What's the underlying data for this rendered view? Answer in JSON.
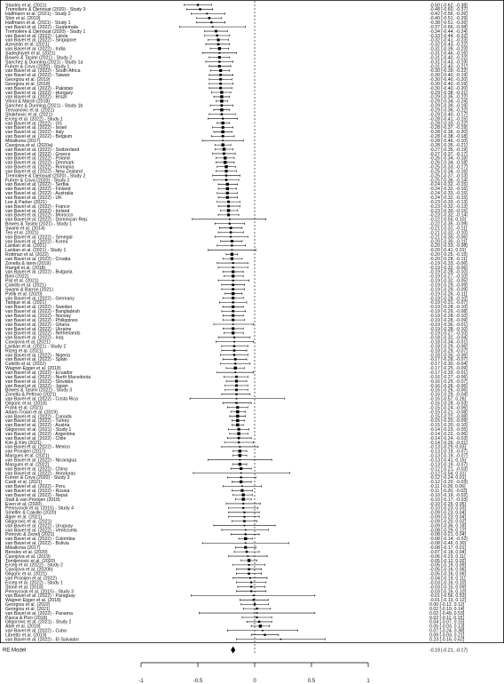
{
  "chart_data": {
    "type": "forest",
    "title": "",
    "xlabel": "",
    "ylabel": "",
    "xlim": [
      -1,
      1
    ],
    "x_ticks": [
      -1,
      -0.5,
      0,
      0.5,
      1
    ],
    "x_tick_labels": [
      "-1",
      "-0.5",
      "0",
      "0.5",
      "1"
    ],
    "grid": false,
    "reference_line": 0,
    "studies": [
      [
        "Stanley et al. (2021)",
        -0.5,
        -0.62,
        -0.38
      ],
      [
        "Tremoliere & Djeriouat (2020) - Study 3",
        -0.48,
        -0.6,
        -0.37
      ],
      [
        "Halfmann et al. (2021) - Study 2",
        -0.42,
        -0.56,
        -0.26
      ],
      [
        "Shin et al. (2019)",
        -0.4,
        -0.51,
        -0.29
      ],
      [
        "Halfmann et al. (2021) - Study 1",
        -0.38,
        -0.51,
        -0.26
      ],
      [
        "van Bavel et al. (2022) - Guatemala",
        -0.37,
        -0.66,
        -0.08
      ],
      [
        "Tremoliere & Djeriouat (2020) - Study 1",
        -0.34,
        -0.44,
        -0.24
      ],
      [
        "van Bavel et al. (2022) - Latvia",
        -0.33,
        -0.44,
        -0.22
      ],
      [
        "van Bavel et al. (2022) - Singapore",
        -0.32,
        -0.41,
        -0.23
      ],
      [
        "Azevedo et al. (2021)",
        -0.32,
        -0.43,
        -0.22
      ],
      [
        "van Bavel et al. (2022) - India",
        -0.31,
        -0.39,
        -0.23
      ],
      [
        "Sadeghiyeh et al. (2021)",
        -0.31,
        -0.46,
        -0.16
      ],
      [
        "Bowes & Tasimi (2021) - Study 2",
        -0.31,
        -0.4,
        -0.22
      ],
      [
        "Sanchez & Dunning (2021) - Study 1a",
        -0.31,
        -0.43,
        -0.19
      ],
      [
        "Fuhrer & Cova (2020) - Study 1",
        -0.31,
        -0.4,
        -0.21
      ],
      [
        "van Bavel et al. (2022) - South Africa",
        -0.3,
        -0.39,
        -0.22
      ],
      [
        "van Bavel et al. (2022) - Taiwan",
        -0.3,
        -0.4,
        -0.19
      ],
      [
        "Georgiou et al. (2019)",
        -0.3,
        -0.4,
        -0.2
      ],
      [
        "Georgiou et al. (2018)",
        -0.3,
        -0.4,
        -0.19
      ],
      [
        "van Bavel et al. (2022) - Pakistan",
        -0.3,
        -0.4,
        -0.2
      ],
      [
        "van Bavel et al. (2022) - Hungary",
        -0.29,
        -0.38,
        -0.21
      ],
      [
        "van Bavel et al. (2022) - Brazil",
        -0.29,
        -0.36,
        -0.22
      ],
      [
        "Vitriol & Marsh (2018)",
        -0.29,
        -0.34,
        -0.24
      ],
      [
        "Sanchez & Dunning (2021) - Study 1b",
        -0.29,
        -0.39,
        -0.19
      ],
      [
        "Teovanovic et al. (2021)",
        -0.29,
        -0.36,
        -0.22
      ],
      [
        "Shakhovic et al. (2021)",
        -0.29,
        -0.4,
        -0.17
      ],
      [
        "Erceg et al. (2022) - Study 1",
        -0.28,
        -0.41,
        -0.15
      ],
      [
        "van Bavel et al. (2022) - US",
        -0.28,
        -0.33,
        -0.22
      ],
      [
        "van Bavel et al. (2022) - Israel",
        -0.28,
        -0.37,
        -0.19
      ],
      [
        "van Bavel et al. (2022) - Italy",
        -0.28,
        -0.36,
        -0.2
      ],
      [
        "van Bavel et al. (2022) - Belgium",
        -0.28,
        -0.38,
        -0.18
      ],
      [
        "Mikalkova (2017)",
        -0.28,
        -0.46,
        -0.1
      ],
      [
        "Cavojova et al. (2020a)",
        -0.28,
        -0.35,
        -0.21
      ],
      [
        "van Bavel et al. (2022) - Switzerland",
        -0.27,
        -0.35,
        -0.19
      ],
      [
        "van Bavel et al. (2022) - Greece",
        -0.27,
        -0.37,
        -0.17
      ],
      [
        "van Bavel et al. (2022) - Poland",
        -0.26,
        -0.34,
        -0.18
      ],
      [
        "van Bavel et al. (2022) - Denmark",
        -0.26,
        -0.34,
        -0.18
      ],
      [
        "van Bavel et al. (2022) - Romania",
        -0.25,
        -0.33,
        -0.17
      ],
      [
        "van Bavel et al. (2022) - New Zealand",
        -0.25,
        -0.34,
        -0.16
      ],
      [
        "Tremoliere & Djeriouat (2020) - Study 2",
        -0.25,
        -0.37,
        -0.13
      ],
      [
        "Fuhrer & Cova (2020) - Study 2",
        -0.25,
        -0.36,
        -0.14
      ],
      [
        "van Bavel et al. (2022) - Serbia",
        -0.24,
        -0.32,
        -0.15
      ],
      [
        "van Bavel et al. (2022) - Finland",
        -0.24,
        -0.32,
        -0.16
      ],
      [
        "van Bavel et al. (2022) - Australia",
        -0.24,
        -0.33,
        -0.15
      ],
      [
        "van Bavel et al. (2022) - UK",
        -0.24,
        -0.32,
        -0.15
      ],
      [
        "Lee & Parker (2021)",
        -0.23,
        -0.33,
        -0.13
      ],
      [
        "van Bavel et al. (2022) - France",
        -0.23,
        -0.32,
        -0.13
      ],
      [
        "van Bavel et al. (2022) - Ireland",
        -0.23,
        -0.3,
        -0.15
      ],
      [
        "van Bavel et al. (2022) - Morocco",
        -0.23,
        -0.32,
        -0.14
      ],
      [
        "van Bavel et al. (2022) - Dominican Rep.",
        -0.22,
        -0.55,
        0.1
      ],
      [
        "Bowes & Tasimi (2021) - Study 1",
        -0.22,
        -0.35,
        -0.09
      ],
      [
        "Swami et al. (2014)",
        -0.21,
        -0.31,
        -0.11
      ],
      [
        "Teo et al. (2021)",
        -0.21,
        -0.32,
        -0.1
      ],
      [
        "van Bavel et al. (2022) - Senegal",
        -0.21,
        -0.35,
        -0.06
      ],
      [
        "van Bavel et al. (2022) - Korea",
        -0.2,
        -0.3,
        -0.11
      ],
      [
        "Lantian et al. (2021)",
        -0.2,
        -0.33,
        -0.08
      ],
      [
        "Lantian et al. (2021) - Study 1",
        -0.2,
        -0.41,
        0.01
      ],
      [
        "Rottman et al. (2022)",
        -0.2,
        -0.25,
        -0.15
      ],
      [
        "van Bavel et al. (2022) - Croatia",
        -0.2,
        -0.28,
        -0.11
      ],
      [
        "Zonella & Ianni (2019)",
        -0.19,
        -0.33,
        -0.06
      ],
      [
        "Rampil et al. (2018)",
        -0.19,
        -0.32,
        -0.06
      ],
      [
        "van Bavel et al. (2022) - Bulgaria",
        -0.19,
        -0.28,
        -0.1
      ],
      [
        "Binil (2022)",
        -0.19,
        -0.27,
        -0.1
      ],
      [
        "Pisl et al. (2021)",
        -0.19,
        -0.32,
        -0.05
      ],
      [
        "Calvillo et al. (2021)",
        -0.19,
        -0.29,
        -0.09
      ],
      [
        "Swami & Barron (2021)",
        -0.19,
        -0.29,
        -0.09
      ],
      [
        "Pytlik et al. (2020)",
        -0.19,
        -0.26,
        -0.11
      ],
      [
        "van Bavel et al. (2022) - Germany",
        -0.19,
        -0.28,
        -0.1
      ],
      [
        "Tarique et al. (2021)",
        -0.19,
        -0.31,
        -0.07
      ],
      [
        "van Bavel et al. (2022) - Sweden",
        -0.19,
        -0.28,
        -0.1
      ],
      [
        "van Bavel et al. (2022) - Bangladesh",
        -0.19,
        -0.29,
        -0.08
      ],
      [
        "van Bavel et al. (2022) - Norway",
        -0.19,
        -0.28,
        -0.1
      ],
      [
        "van Bavel et al. (2022) - Philippines",
        -0.19,
        -0.28,
        -0.09
      ],
      [
        "van Bavel et al. (2022) - Ghana",
        -0.19,
        -0.36,
        -0.01
      ],
      [
        "van Bavel et al. (2022) - Ukraine",
        -0.19,
        -0.28,
        -0.1
      ],
      [
        "van Bavel et al. (2022) - Netherlands",
        -0.19,
        -0.27,
        -0.1
      ],
      [
        "van Bavel et al. (2022) - Iraq",
        -0.18,
        -0.32,
        -0.04
      ],
      [
        "Cavojova et al. (2021)",
        -0.18,
        -0.34,
        -0.01
      ],
      [
        "Lantian et al. (2021) - Study 2",
        -0.18,
        -0.29,
        -0.06
      ],
      [
        "Rizeq et al. (2021)",
        -0.18,
        -0.29,
        -0.07
      ],
      [
        "van Bavel et al. (2022) - Nigeria",
        -0.18,
        -0.3,
        -0.06
      ],
      [
        "van Bavel et al. (2022) - Spain",
        -0.17,
        -0.28,
        -0.07
      ],
      [
        "Calvillo et al. (2022)",
        -0.17,
        -0.3,
        -0.04
      ],
      [
        "Wagner-Egger et al. (2018)",
        -0.17,
        -0.25,
        -0.09
      ],
      [
        "van Bavel et al. (2022) - Ecuador",
        -0.17,
        -0.33,
        -0.01
      ],
      [
        "van Bavel et al. (2022) - North Macedonia",
        -0.16,
        -0.27,
        -0.06
      ],
      [
        "van Bavel et al. (2022) - Slovakia",
        -0.16,
        -0.25,
        -0.07
      ],
      [
        "van Bavel et al. (2022) - Japan",
        -0.16,
        -0.26,
        -0.06
      ],
      [
        "Bowes & Tasimi (2021) - Study 3",
        -0.16,
        -0.26,
        -0.06
      ],
      [
        "Zonella & Pettovo (2021)",
        -0.16,
        -0.29,
        -0.04
      ],
      [
        "van Bavel et al. (2022) - Costa Rica",
        -0.16,
        -0.57,
        0.26
      ],
      [
        "Gligoric et al. (2018)",
        -0.16,
        -0.28,
        -0.03
      ],
      [
        "Frank et al. (2021)",
        -0.15,
        -0.24,
        -0.06
      ],
      [
        "Adam-Troian et al. (2019)",
        -0.15,
        -0.21,
        -0.08
      ],
      [
        "van Bavel et al. (2022) - Canada",
        -0.15,
        -0.22,
        -0.08
      ],
      [
        "van Bavel et al. (2022) - Turkey",
        -0.15,
        -0.2,
        -0.09
      ],
      [
        "van Bavel et al. (2022) - Austria",
        -0.15,
        -0.2,
        -0.1
      ],
      [
        "Gligorovic et al. (2021) - Study 1",
        -0.14,
        -0.23,
        -0.05
      ],
      [
        "van Bavel et al. (2022) - Argentina",
        -0.14,
        -0.22,
        -0.06
      ],
      [
        "van Bavel et al. (2022) - Chile",
        -0.14,
        -0.24,
        -0.03
      ],
      [
        "Kim & Kim (2021)",
        -0.14,
        -0.26,
        -0.01
      ],
      [
        "van Bavel et al. (2022) - Mexico",
        -0.13,
        -0.29,
        0.03
      ],
      [
        "van Prooijen (2017)",
        -0.13,
        -0.19,
        -0.07
      ],
      [
        "Marques et al. (2021)",
        -0.13,
        -0.19,
        -0.07
      ],
      [
        "van Bavel et al. (2022) - Nicaragua",
        -0.13,
        -0.41,
        0.15
      ],
      [
        "Marques et al. (2022)",
        -0.13,
        -0.19,
        -0.07
      ],
      [
        "van Bavel et al. (2022) - China",
        -0.12,
        -0.21,
        -0.03
      ],
      [
        "van Bavel et al. (2022) - Honduras",
        -0.12,
        -0.54,
        0.31
      ],
      [
        "Fuhrer & Cova (2020) - Study 3",
        -0.12,
        -0.24,
        0.01
      ],
      [
        "Cardi et al. (2021)",
        -0.12,
        -0.2,
        -0.03
      ],
      [
        "van Bavel et al. (2022) - Peru",
        -0.11,
        -0.28,
        0.06
      ],
      [
        "van Bavel et al. (2022) - Russia",
        -0.11,
        -0.2,
        -0.02
      ],
      [
        "van Bavel et al. (2022) - Nepal",
        -0.1,
        -0.19,
        -0.02
      ],
      [
        "Stall & van Prooijen (2018)",
        -0.1,
        -0.17,
        -0.03
      ],
      [
        "Even et al. (2020)",
        -0.1,
        -0.25,
        0.05
      ],
      [
        "Pennycook et al. (2015) - Study 4",
        -0.1,
        -0.23,
        0.03
      ],
      [
        "Smelter & Calvillo (2020)",
        -0.09,
        -0.23,
        0.04
      ],
      [
        "Alper et al. (2021)",
        -0.09,
        -0.23,
        0.04
      ],
      [
        "Gligorovic et al. (2021)",
        -0.09,
        -0.2,
        0.02
      ],
      [
        "van Bavel et al. (2022) - Uruguay",
        -0.09,
        -0.36,
        0.18
      ],
      [
        "van Bavel et al. (2022) - Venezuela",
        -0.08,
        -0.29,
        0.12
      ],
      [
        "Petrovic & Zezelj (2021)",
        -0.08,
        -0.21,
        0.04
      ],
      [
        "van Bavel et al. (2022) - Colombia",
        -0.08,
        -0.14,
        -0.02
      ],
      [
        "van Bavel et al. (2022) - Bolivia",
        -0.08,
        -0.46,
        0.3
      ],
      [
        "Mikalkova (2017)",
        -0.08,
        -0.17,
        0.01
      ],
      [
        "Bensley et al. (2020)",
        -0.07,
        -0.18,
        0.04
      ],
      [
        "Cavojova et al. (2019)",
        -0.06,
        -0.23,
        0.11
      ],
      [
        "Tomljenovic et al. (2020)",
        -0.05,
        -0.12,
        0.02
      ],
      [
        "Erceg et al. (2022) - Study 2",
        -0.05,
        -0.19,
        0.09
      ],
      [
        "Cavojova et al. (2020b)",
        -0.05,
        -0.16,
        0.06
      ],
      [
        "Gligoric et al. (2021)",
        -0.05,
        -0.16,
        0.06
      ],
      [
        "van Prooijen et al. (2022)",
        -0.04,
        -0.19,
        0.11
      ],
      [
        "Erceg et al. (2022) - Study 1",
        -0.03,
        -0.16,
        0.1
      ],
      [
        "Stone et al. (2018)",
        -0.03,
        -0.15,
        0.09
      ],
      [
        "Pennycook et al. (2015) - Study 3",
        -0.03,
        -0.16,
        0.1
      ],
      [
        "van Bavel et al. (2022) - Paraguay",
        -0.01,
        -0.56,
        0.53
      ],
      [
        "Wagner-Egger et al. (2018)",
        -0.01,
        -0.13,
        0.12
      ],
      [
        "Georgiou et al. (2022)",
        0.0,
        -0.12,
        0.12
      ],
      [
        "Georgiou et al. (2021)",
        0.02,
        -0.1,
        0.14
      ],
      [
        "van Bavel et al. (2022) - Panama",
        0.02,
        -0.49,
        0.53
      ],
      [
        "Pasca & Pizo (2019)",
        0.02,
        -0.11,
        0.15
      ],
      [
        "Gligorovic et al. (2021) - Study 2",
        0.04,
        -0.07,
        0.15
      ],
      [
        "Abel et al. (2019)",
        0.05,
        -0.03,
        0.13
      ],
      [
        "van Bavel et al. (2022) - Cuba",
        0.07,
        -0.24,
        0.38
      ],
      [
        "Libretto et al. (2019)",
        0.09,
        -0.03,
        0.21
      ],
      [
        "van Bavel et al. (2022) - El Salvador",
        0.23,
        -0.16,
        0.62
      ]
    ],
    "summary": {
      "label": "RE Model",
      "estimate": -0.19,
      "ci_lower": -0.21,
      "ci_upper": -0.17
    }
  }
}
